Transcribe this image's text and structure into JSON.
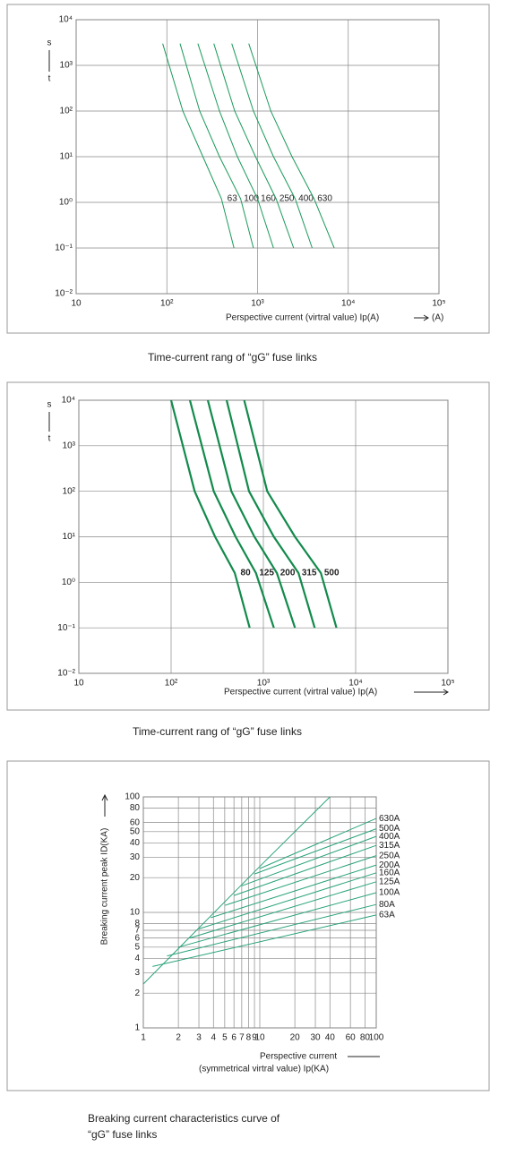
{
  "chart_data": [
    {
      "type": "line",
      "log_x": true,
      "log_y": true,
      "grid": true,
      "y_label_top": "s",
      "y_label_bottom": "t",
      "xlabel": "Perspective current (virtral value) Ip(A)",
      "x_unit": "(A)",
      "caption": "Time-current rang of “gG” fuse links",
      "xlim": [
        10,
        100000
      ],
      "xticks": [
        10,
        {
          "value": 100,
          "label": "10²"
        },
        {
          "value": 1000,
          "label": "10³"
        },
        {
          "value": 10000,
          "label": "10⁴"
        },
        {
          "value": 100000,
          "label": "10⁵"
        }
      ],
      "ylim": [
        0.01,
        10000
      ],
      "yticks": [
        {
          "value": 0.01,
          "label": "10⁻²"
        },
        {
          "value": 0.1,
          "label": "10⁻¹"
        },
        {
          "value": 1,
          "label": "10⁰"
        },
        {
          "value": 10,
          "label": "10¹"
        },
        {
          "value": 100,
          "label": "10²"
        },
        {
          "value": 1000,
          "label": "10³"
        },
        {
          "value": 10000,
          "label": "10⁴"
        }
      ],
      "series": [
        {
          "name": "63",
          "color": "#1a9a5a",
          "x": [
            90,
            150,
            250,
            400,
            550
          ],
          "values": [
            3000,
            100,
            10,
            1.2,
            0.1
          ]
        },
        {
          "name": "100",
          "color": "#1a9a5a",
          "x": [
            140,
            230,
            380,
            650,
            900
          ],
          "values": [
            3000,
            100,
            10,
            1.2,
            0.1
          ]
        },
        {
          "name": "160",
          "color": "#1a9a5a",
          "x": [
            220,
            380,
            600,
            1000,
            1500
          ],
          "values": [
            3000,
            100,
            10,
            1.2,
            0.1
          ]
        },
        {
          "name": "250",
          "color": "#1a9a5a",
          "x": [
            330,
            560,
            950,
            1600,
            2500
          ],
          "values": [
            3000,
            100,
            10,
            1.2,
            0.1
          ]
        },
        {
          "name": "400",
          "color": "#1a9a5a",
          "x": [
            520,
            900,
            1500,
            2600,
            4000
          ],
          "values": [
            3000,
            100,
            10,
            1.2,
            0.1
          ]
        },
        {
          "name": "630",
          "color": "#1a9a5a",
          "x": [
            800,
            1400,
            2400,
            4200,
            7000
          ],
          "values": [
            3000,
            100,
            10,
            1.2,
            0.1
          ]
        }
      ]
    },
    {
      "type": "line",
      "log_x": true,
      "log_y": true,
      "grid": true,
      "y_label_top": "s",
      "y_label_bottom": "t",
      "xlabel": "Perspective current (virtral value) Ip(A)",
      "caption": "Time-current rang of “gG” fuse links",
      "xlim": [
        10,
        100000
      ],
      "xticks": [
        10,
        {
          "value": 100,
          "label": "10²"
        },
        {
          "value": 1000,
          "label": "10³"
        },
        {
          "value": 10000,
          "label": "10⁴"
        },
        {
          "value": 100000,
          "label": "10⁵"
        }
      ],
      "ylim": [
        0.01,
        10000
      ],
      "yticks": [
        {
          "value": 0.01,
          "label": "10⁻²"
        },
        {
          "value": 0.1,
          "label": "10⁻¹"
        },
        {
          "value": 1,
          "label": "10⁰"
        },
        {
          "value": 10,
          "label": "10¹"
        },
        {
          "value": 100,
          "label": "10²"
        },
        {
          "value": 1000,
          "label": "10³"
        },
        {
          "value": 10000,
          "label": "10⁴"
        }
      ],
      "series": [
        {
          "name": "80",
          "color": "#138a4c",
          "x": [
            100,
            180,
            300,
            490,
            710
          ],
          "values": [
            10000,
            100,
            10,
            1.6,
            0.1
          ]
        },
        {
          "name": "125",
          "color": "#138a4c",
          "x": [
            160,
            290,
            500,
            830,
            1300
          ],
          "values": [
            10000,
            100,
            10,
            1.6,
            0.1
          ]
        },
        {
          "name": "200",
          "color": "#138a4c",
          "x": [
            250,
            450,
            800,
            1400,
            2200
          ],
          "values": [
            10000,
            100,
            10,
            1.6,
            0.1
          ]
        },
        {
          "name": "315",
          "color": "#138a4c",
          "x": [
            400,
            700,
            1300,
            2400,
            3600
          ],
          "values": [
            10000,
            100,
            10,
            1.6,
            0.1
          ]
        },
        {
          "name": "500",
          "color": "#138a4c",
          "x": [
            620,
            1100,
            2200,
            4200,
            6200
          ],
          "values": [
            10000,
            100,
            10,
            1.6,
            0.1
          ]
        }
      ]
    },
    {
      "type": "line",
      "log_x": true,
      "log_y": true,
      "grid": true,
      "ylabel": "Breaking current peak ID(KA)",
      "xlabel": [
        "Perspective current",
        "(symmetrical virtral value) Ip(KA)"
      ],
      "caption": [
        "Breaking current characteristics curve of",
        "“gG” fuse links"
      ],
      "xlim": [
        1,
        100
      ],
      "xticks": [
        1,
        2,
        3,
        4,
        5,
        6,
        7,
        8,
        9,
        10,
        20,
        30,
        40,
        60,
        80,
        100
      ],
      "ylim": [
        1,
        100
      ],
      "yticks": [
        1,
        2,
        3,
        4,
        5,
        6,
        7,
        8,
        10,
        20,
        30,
        40,
        50,
        60,
        80,
        100
      ],
      "series": [
        {
          "color": "#2aa37a",
          "x": [
            1,
            10,
            40
          ],
          "values": [
            2.4,
            25,
            100
          ]
        },
        {
          "name": "63A",
          "color": "#2aa37a",
          "x": [
            1.2,
            100
          ],
          "values": [
            3.4,
            9.5
          ]
        },
        {
          "name": "80A",
          "color": "#2aa37a",
          "x": [
            1.6,
            100
          ],
          "values": [
            4.2,
            11.7
          ]
        },
        {
          "name": "100A",
          "color": "#2aa37a",
          "x": [
            2,
            100
          ],
          "values": [
            5,
            14.8
          ]
        },
        {
          "name": "125A",
          "color": "#2aa37a",
          "x": [
            2.5,
            100
          ],
          "values": [
            6,
            18.4
          ]
        },
        {
          "name": "160A",
          "color": "#2aa37a",
          "x": [
            3,
            100
          ],
          "values": [
            7.2,
            22
          ]
        },
        {
          "name": "200A",
          "color": "#2aa37a",
          "x": [
            3.8,
            100
          ],
          "values": [
            9,
            25.7
          ]
        },
        {
          "name": "250A",
          "color": "#2aa37a",
          "x": [
            5,
            100
          ],
          "values": [
            11.5,
            31
          ]
        },
        {
          "name": "315A",
          "color": "#2aa37a",
          "x": [
            6,
            100
          ],
          "values": [
            14,
            38
          ]
        },
        {
          "name": "400A",
          "color": "#2aa37a",
          "x": [
            7,
            100
          ],
          "values": [
            17,
            45.5
          ]
        },
        {
          "name": "500A",
          "color": "#2aa37a",
          "x": [
            9,
            100
          ],
          "values": [
            21.5,
            53
          ]
        },
        {
          "name": "630A",
          "color": "#2aa37a",
          "x": [
            10,
            100
          ],
          "values": [
            24,
            65
          ]
        }
      ]
    }
  ]
}
